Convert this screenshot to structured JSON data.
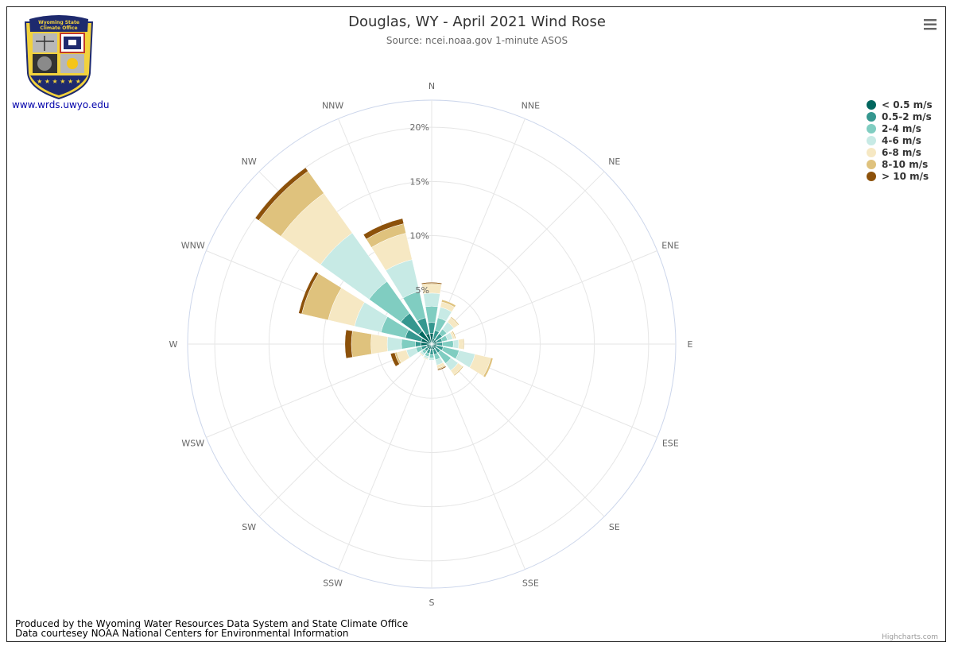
{
  "logo": {
    "banner_line1": "Wyoming State",
    "banner_line2": "Climate Office",
    "colors": {
      "navy": "#1e2a6e",
      "gold": "#f2d23c",
      "gray": "#b8b8b8"
    }
  },
  "site_link": "www.wrds.uwyo.edu",
  "menu_icon": "hamburger-menu-icon",
  "footer": {
    "line1": "Produced by the Wyoming Water Resources Data System and State Climate Office",
    "line2": "Data courtesey NOAA National Centers for Environmental Information"
  },
  "credits": "Highcharts.com",
  "chart_data": {
    "type": "windrose",
    "title": "Douglas, WY - April 2021 Wind Rose",
    "subtitle": "Source: ncei.noaa.gov 1-minute ASOS",
    "directions": [
      "N",
      "NNE",
      "NE",
      "ENE",
      "E",
      "ESE",
      "SE",
      "SSE",
      "S",
      "SSW",
      "SW",
      "WSW",
      "W",
      "WNW",
      "NW",
      "NNW"
    ],
    "radial_ticks": [
      "5%",
      "10%",
      "15%",
      "20%"
    ],
    "radial_tick_values": [
      5,
      10,
      15,
      20
    ],
    "radial_max": 22.5,
    "stacking": "normal",
    "legend_position": "top-right",
    "series": [
      {
        "name": "< 0.5 m/s",
        "color": "#01665e",
        "values": [
          1.0,
          0.5,
          0.5,
          0.5,
          0.5,
          0.5,
          0.5,
          0.5,
          0.5,
          0.5,
          0.5,
          0.5,
          1.0,
          1.0,
          1.5,
          1.0
        ]
      },
      {
        "name": "0.5-2 m/s",
        "color": "#35978f",
        "values": [
          1.0,
          0.8,
          0.7,
          0.5,
          0.5,
          0.6,
          0.5,
          0.5,
          0.5,
          0.4,
          0.3,
          0.5,
          0.5,
          1.5,
          2.0,
          1.5
        ]
      },
      {
        "name": "2-4 m/s",
        "color": "#80cdc1",
        "values": [
          1.5,
          1.2,
          0.5,
          0.5,
          1.0,
          1.5,
          1.2,
          0.5,
          0.3,
          0.3,
          0.3,
          0.5,
          1.3,
          2.3,
          3.6,
          2.5
        ]
      },
      {
        "name": "4-6 m/s",
        "color": "#c7eae5",
        "values": [
          1.2,
          1.0,
          0.8,
          0.5,
          0.5,
          1.5,
          0.8,
          0.5,
          0.2,
          0.2,
          0.2,
          0.9,
          1.3,
          2.5,
          5.5,
          3.0
        ]
      },
      {
        "name": "6-8 m/s",
        "color": "#f6e8c3",
        "values": [
          0.8,
          0.5,
          0.5,
          0.2,
          0.4,
          1.5,
          0.5,
          0.3,
          0.0,
          0.1,
          0.1,
          0.9,
          1.5,
          2.5,
          4.5,
          2.5
        ]
      },
      {
        "name": "8-10 m/s",
        "color": "#dfc27d",
        "values": [
          0.1,
          0.2,
          0.1,
          0.1,
          0.1,
          0.2,
          0.1,
          0.1,
          0.0,
          0.0,
          0.0,
          0.2,
          1.8,
          2.5,
          2.5,
          0.9
        ]
      },
      {
        "name": "> 10 m/s",
        "color": "#8c510a",
        "values": [
          0.1,
          0.0,
          0.0,
          0.0,
          0.0,
          0.0,
          0.0,
          0.1,
          0.0,
          0.0,
          0.0,
          0.4,
          0.6,
          0.3,
          0.4,
          0.5
        ]
      }
    ]
  }
}
